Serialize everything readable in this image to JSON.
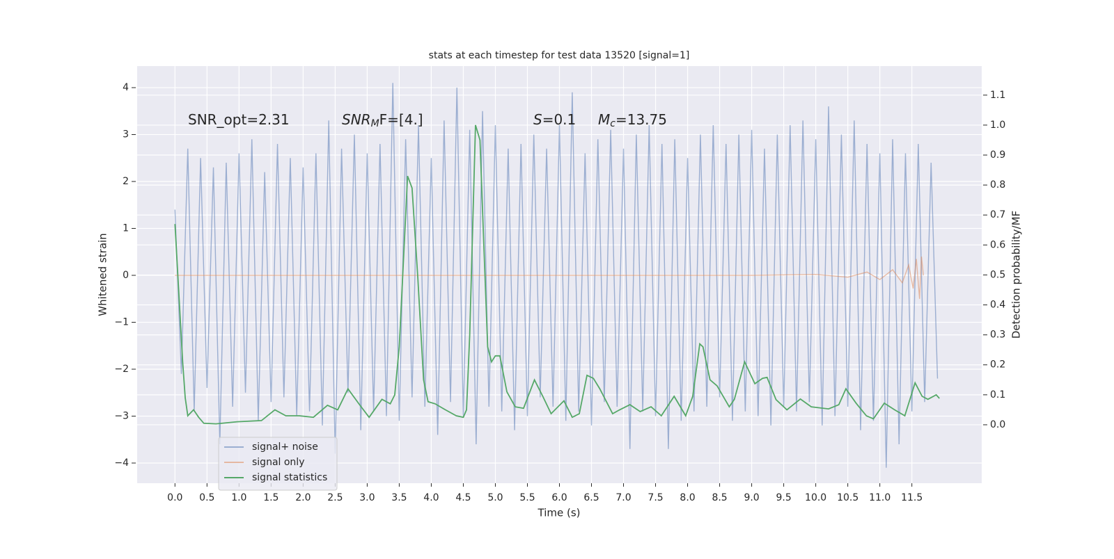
{
  "chart_data": {
    "type": "line",
    "title": "stats at each timestep for test data 13520 [signal=1]",
    "xlabel": "Time (s)",
    "ylabel": "Whitened strain",
    "y2label": "Detection probability/MF",
    "xlim": [
      -0.59,
      12.59
    ],
    "ylim": [
      -4.43,
      4.46
    ],
    "y2lim": [
      -0.195,
      1.197
    ],
    "xticks": [
      {
        "value": 0,
        "label": "0.0"
      },
      0.5,
      {
        "value": 1,
        "label": "1.0"
      },
      1.5,
      {
        "value": 2,
        "label": "2.0"
      },
      2.5,
      {
        "value": 3,
        "label": "3.0"
      },
      3.5,
      {
        "value": 4,
        "label": "4.0"
      },
      4.5,
      {
        "value": 5,
        "label": "5.0"
      },
      5.5,
      {
        "value": 6,
        "label": "6.0"
      },
      6.5,
      {
        "value": 7,
        "label": "7.0"
      },
      7.5,
      {
        "value": 8,
        "label": "8.0"
      },
      8.5,
      {
        "value": 9,
        "label": "9.0"
      },
      9.5,
      {
        "value": 10,
        "label": "10.0"
      },
      10.5,
      {
        "value": 11,
        "label": "11.0"
      },
      11.5
    ],
    "yticks": [
      {
        "value": -4,
        "label": "−4"
      },
      {
        "value": -3,
        "label": "−3"
      },
      {
        "value": -2,
        "label": "−2"
      },
      {
        "value": -1,
        "label": "−1"
      },
      0,
      1,
      2,
      3,
      4
    ],
    "y2ticks": [
      {
        "value": 0,
        "label": "0.0"
      },
      0.1,
      0.2,
      0.3,
      0.4,
      0.5,
      0.6,
      0.7,
      0.8,
      0.9,
      {
        "value": 1,
        "label": "1.0"
      },
      1.1
    ],
    "grid": true,
    "legend": "lower left",
    "annotations": [
      {
        "text": "SNR_opt=2.31"
      },
      {
        "symbol": "SNR",
        "subscript": "M",
        "text": "F=[4.]"
      },
      {
        "symbol": "S",
        "text": "=0.1"
      },
      {
        "symbol": "M",
        "subscript": "c",
        "text": "=13.75"
      }
    ],
    "series": [
      {
        "name": "signal+ noise",
        "color": "#4c72b0",
        "opacity": 0.5,
        "x": [
          0.0,
          0.1,
          0.2,
          0.3,
          0.4,
          0.5,
          0.6,
          0.7,
          0.8,
          0.9,
          1.0,
          1.1,
          1.2,
          1.3,
          1.4,
          1.5,
          1.6,
          1.7,
          1.8,
          1.9,
          2.0,
          2.1,
          2.2,
          2.3,
          2.4,
          2.5,
          2.6,
          2.7,
          2.8,
          2.9,
          3.0,
          3.1,
          3.2,
          3.3,
          3.4,
          3.5,
          3.6,
          3.7,
          3.8,
          3.9,
          4.0,
          4.1,
          4.2,
          4.3,
          4.4,
          4.5,
          4.6,
          4.7,
          4.8,
          4.9,
          5.0,
          5.1,
          5.2,
          5.3,
          5.4,
          5.5,
          5.6,
          5.7,
          5.8,
          5.9,
          6.0,
          6.1,
          6.2,
          6.3,
          6.4,
          6.5,
          6.6,
          6.7,
          6.8,
          6.9,
          7.0,
          7.1,
          7.2,
          7.3,
          7.4,
          7.5,
          7.6,
          7.7,
          7.8,
          7.9,
          8.0,
          8.1,
          8.2,
          8.3,
          8.4,
          8.5,
          8.6,
          8.7,
          8.8,
          8.9,
          9.0,
          9.1,
          9.2,
          9.3,
          9.4,
          9.5,
          9.6,
          9.7,
          9.8,
          9.9,
          10.0,
          10.1,
          10.2,
          10.3,
          10.4,
          10.5,
          10.6,
          10.7,
          10.8,
          10.9,
          11.0,
          11.1,
          11.2,
          11.3,
          11.4,
          11.5,
          11.6,
          11.7,
          11.8,
          11.9
        ],
        "values": [
          1.4,
          -2.1,
          2.7,
          -2.9,
          2.5,
          -2.4,
          2.3,
          -3.6,
          2.4,
          -2.8,
          2.6,
          -2.5,
          2.9,
          -3.1,
          2.2,
          -2.7,
          2.8,
          -2.6,
          2.5,
          -3.0,
          2.3,
          -2.9,
          2.6,
          -3.2,
          3.3,
          -3.8,
          2.7,
          -2.5,
          3.0,
          -3.3,
          2.6,
          -2.9,
          2.8,
          -3.0,
          4.1,
          -3.1,
          2.9,
          -2.6,
          3.2,
          -2.8,
          2.5,
          -3.4,
          3.3,
          -2.7,
          4.0,
          -3.0,
          3.1,
          -3.6,
          3.5,
          -2.8,
          3.2,
          -2.9,
          2.7,
          -3.3,
          2.8,
          -3.0,
          3.0,
          -2.6,
          2.7,
          -2.8,
          3.2,
          -3.1,
          3.9,
          -2.9,
          2.6,
          -3.2,
          2.9,
          -2.7,
          3.1,
          -2.8,
          2.7,
          -3.7,
          3.0,
          -2.9,
          3.2,
          -3.0,
          2.8,
          -3.7,
          2.9,
          -3.1,
          2.5,
          -2.9,
          3.0,
          -2.8,
          3.2,
          -2.6,
          2.8,
          -3.1,
          3.0,
          -2.9,
          3.1,
          -3.0,
          2.7,
          -3.2,
          3.0,
          -2.8,
          3.2,
          -2.9,
          3.3,
          -2.7,
          2.9,
          -3.2,
          3.6,
          -3.0,
          3.0,
          -2.8,
          3.3,
          -3.3,
          2.8,
          -3.1,
          2.6,
          -4.1,
          2.9,
          -3.6,
          2.6,
          -2.9,
          2.8,
          -2.7,
          2.4,
          -2.2
        ]
      },
      {
        "name": "signal only",
        "color": "#dd8452",
        "opacity": 0.5,
        "x": [
          0.0,
          9.0,
          10.0,
          10.5,
          10.8,
          11.0,
          11.2,
          11.35,
          11.45,
          11.52,
          11.57,
          11.62,
          11.65,
          11.68
        ],
        "values": [
          0,
          0,
          0.02,
          -0.04,
          0.07,
          -0.09,
          0.12,
          -0.16,
          0.22,
          -0.28,
          0.35,
          -0.5,
          0.4,
          0
        ]
      },
      {
        "name": "signal statistics",
        "color": "#55a868",
        "opacity": 1,
        "axis": "y2",
        "x": [
          0.0,
          0.12,
          0.16,
          0.2,
          0.29,
          0.37,
          0.45,
          0.64,
          0.97,
          1.35,
          1.56,
          1.73,
          1.94,
          2.16,
          2.38,
          2.54,
          2.7,
          2.87,
          3.03,
          3.23,
          3.36,
          3.43,
          3.5,
          3.63,
          3.7,
          3.79,
          3.88,
          3.95,
          4.06,
          4.22,
          4.39,
          4.5,
          4.55,
          4.6,
          4.69,
          4.76,
          4.82,
          4.88,
          4.94,
          5.0,
          5.07,
          5.18,
          5.31,
          5.44,
          5.61,
          5.74,
          5.87,
          6.07,
          6.2,
          6.31,
          6.43,
          6.53,
          6.63,
          6.83,
          6.94,
          7.1,
          7.26,
          7.43,
          7.59,
          7.79,
          7.97,
          8.08,
          8.19,
          8.24,
          8.35,
          8.46,
          8.65,
          8.73,
          8.89,
          9.05,
          9.17,
          9.24,
          9.38,
          9.55,
          9.76,
          9.93,
          10.2,
          10.36,
          10.47,
          10.63,
          10.79,
          10.9,
          11.07,
          11.23,
          11.39,
          11.55,
          11.66,
          11.75,
          11.88,
          11.93
        ],
        "values": [
          0.67,
          0.21,
          0.09,
          0.03,
          0.05,
          0.025,
          0.005,
          0.003,
          0.01,
          0.014,
          0.05,
          0.03,
          0.03,
          0.025,
          0.065,
          0.05,
          0.12,
          0.07,
          0.025,
          0.085,
          0.07,
          0.1,
          0.26,
          0.83,
          0.79,
          0.49,
          0.15,
          0.077,
          0.07,
          0.05,
          0.03,
          0.025,
          0.05,
          0.3,
          1.0,
          0.95,
          0.6,
          0.26,
          0.21,
          0.23,
          0.23,
          0.11,
          0.06,
          0.055,
          0.15,
          0.095,
          0.037,
          0.08,
          0.025,
          0.037,
          0.165,
          0.155,
          0.12,
          0.037,
          0.05,
          0.067,
          0.044,
          0.06,
          0.03,
          0.095,
          0.03,
          0.095,
          0.27,
          0.26,
          0.15,
          0.13,
          0.06,
          0.085,
          0.21,
          0.137,
          0.155,
          0.158,
          0.084,
          0.05,
          0.086,
          0.06,
          0.053,
          0.067,
          0.12,
          0.072,
          0.03,
          0.02,
          0.072,
          0.05,
          0.03,
          0.14,
          0.095,
          0.085,
          0.1,
          0.088
        ]
      }
    ]
  }
}
